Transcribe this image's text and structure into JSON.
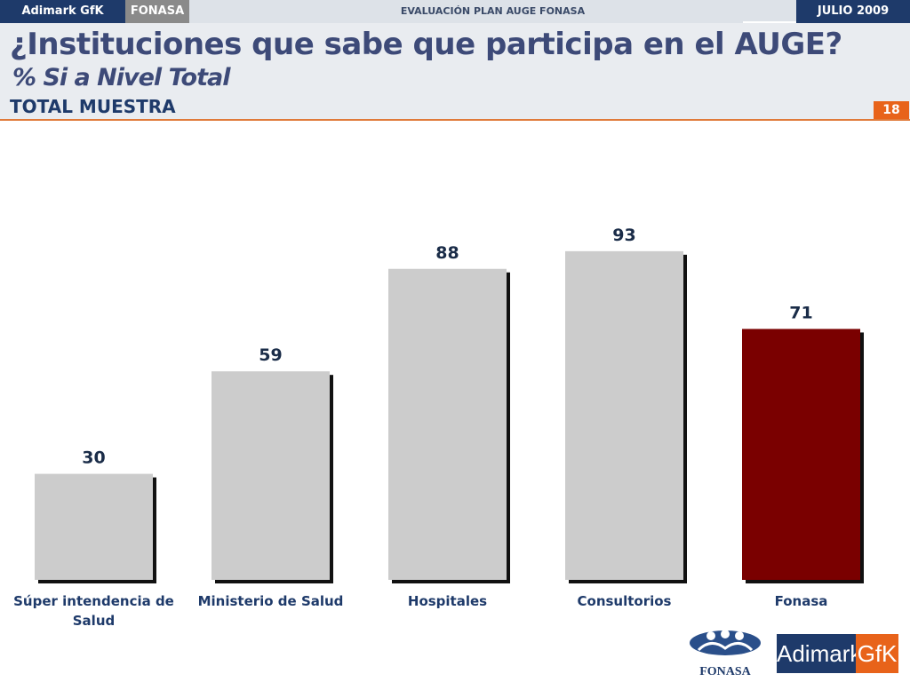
{
  "topbar": {
    "brand": "Adimark GfK",
    "client": "FONASA",
    "study": "EVALUACIÓN PLAN AUGE FONASA",
    "date": "JULIO 2009"
  },
  "header": {
    "title": "¿Instituciones que sabe que participa en el AUGE?",
    "subtitle": "% Si a Nivel Total",
    "sample": "TOTAL MUESTRA",
    "page_number": "18"
  },
  "colors": {
    "bar_default": "#cccccc",
    "bar_highlight": "#7a0000",
    "label_color": "#1e3a6a",
    "accent": "#e8631a"
  },
  "chart_data": {
    "type": "bar",
    "categories": [
      "Súper intendencia de Salud",
      "Ministerio de Salud",
      "Hospitales",
      "Consultorios",
      "Fonasa"
    ],
    "category_lines": [
      [
        "Súper intendencia de",
        "Salud"
      ],
      [
        "Ministerio de Salud"
      ],
      [
        "Hospitales"
      ],
      [
        "Consultorios"
      ],
      [
        "Fonasa"
      ]
    ],
    "values": [
      30,
      59,
      88,
      93,
      71
    ],
    "highlight_index": 4,
    "title": "",
    "xlabel": "",
    "ylabel": "",
    "ylim": [
      0,
      100
    ],
    "grid": false,
    "data_labels": true
  },
  "logos": {
    "fonasa_text": "FONASA",
    "adimark_left": "Adimark",
    "adimark_right": "GfK"
  }
}
